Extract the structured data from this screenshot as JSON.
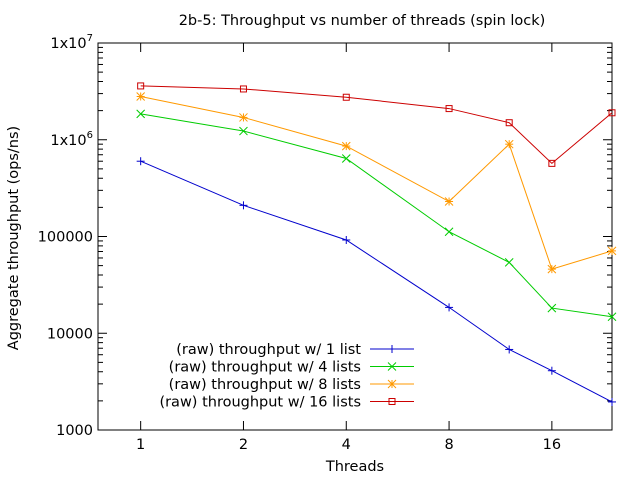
{
  "chart_data": {
    "type": "line",
    "title": "2b-5: Throughput vs number of threads (spin lock)",
    "xlabel": "Threads",
    "ylabel": "Aggregate throughput (ops/ns)",
    "x_scale": "log2",
    "y_scale": "log10",
    "xlim": [
      0.75,
      24
    ],
    "ylim": [
      1000,
      10000000
    ],
    "x_ticks": [
      {
        "value": 1,
        "label": "1"
      },
      {
        "value": 2,
        "label": "2"
      },
      {
        "value": 4,
        "label": "4"
      },
      {
        "value": 8,
        "label": "8"
      },
      {
        "value": 16,
        "label": "16"
      }
    ],
    "y_ticks": [
      {
        "value": 1000,
        "label": "1000"
      },
      {
        "value": 10000,
        "label": "10000"
      },
      {
        "value": 100000,
        "label": "100000"
      },
      {
        "value": 1000000,
        "label": "1x10",
        "exp": "6"
      },
      {
        "value": 10000000,
        "label": "1x10",
        "exp": "7"
      }
    ],
    "grid": false,
    "legend_position": "bottom-left",
    "x": [
      1,
      2,
      4,
      8,
      12,
      16,
      24
    ],
    "series": [
      {
        "name": "(raw) throughput w/ 1 list",
        "color": "#0000cc",
        "marker": "plus",
        "values": [
          600000,
          210000,
          92000,
          18500,
          6800,
          4100,
          1950
        ]
      },
      {
        "name": "(raw) throughput w/ 4 lists",
        "color": "#00cc00",
        "marker": "cross",
        "values": [
          1850000,
          1230000,
          640000,
          112000,
          54000,
          18200,
          14800
        ]
      },
      {
        "name": "(raw) throughput w/ 8 lists",
        "color": "#ff9900",
        "marker": "star",
        "values": [
          2800000,
          1700000,
          860000,
          230000,
          900000,
          46000,
          71000
        ]
      },
      {
        "name": "(raw) throughput w/ 16 lists",
        "color": "#cc0000",
        "marker": "square",
        "values": [
          3600000,
          3350000,
          2750000,
          2100000,
          1500000,
          570000,
          1900000
        ]
      }
    ]
  }
}
